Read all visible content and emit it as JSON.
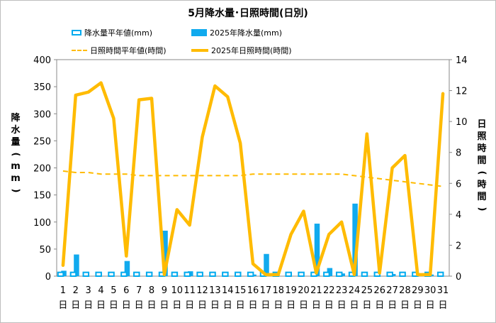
{
  "chart_data": {
    "type": "bar+line",
    "title": "5月降水量･日照時間(日別)",
    "categories": [
      "1",
      "2",
      "3",
      "4",
      "5",
      "6",
      "7",
      "8",
      "9",
      "10",
      "11",
      "12",
      "13",
      "14",
      "15",
      "16",
      "17",
      "18",
      "19",
      "20",
      "21",
      "22",
      "23",
      "24",
      "25",
      "26",
      "27",
      "28",
      "29",
      "30",
      "31"
    ],
    "day_suffix": "日",
    "y_left": {
      "label": "降水量(mm)",
      "ylim": [
        0,
        400
      ],
      "ticks": [
        "0",
        "50",
        "100",
        "150",
        "200",
        "250",
        "300",
        "350",
        "400"
      ]
    },
    "y_right": {
      "label": "日照時間(時間)",
      "ylim": [
        0,
        14
      ],
      "ticks": [
        "0",
        "2",
        "4",
        "6",
        "8",
        "10",
        "12",
        "14"
      ]
    },
    "legend": {
      "precip_avg": "降水量平年値(mm)",
      "precip_2025": "2025年降水量(mm)",
      "sun_avg": "日照時間平年値(時間)",
      "sun_2025": "2025年日照時間(時間)"
    },
    "series": [
      {
        "name": "降水量平年値(mm)",
        "axis": "left",
        "style": "bar-outline",
        "color": "#00aaee",
        "values": [
          7,
          7,
          7,
          7,
          7,
          7,
          7,
          7,
          7,
          7,
          7,
          7,
          7,
          7,
          7,
          7,
          7,
          7,
          7,
          7,
          7,
          7,
          7,
          7,
          7,
          7,
          7,
          7,
          7,
          7,
          7
        ]
      },
      {
        "name": "2025年降水量(mm)",
        "axis": "left",
        "style": "bar",
        "color": "#11aaee",
        "values": [
          10,
          40,
          0,
          0,
          0,
          28,
          0,
          0,
          84,
          0,
          9,
          0,
          0,
          0,
          0,
          3,
          41,
          0,
          0,
          0,
          97,
          15,
          5,
          134,
          0,
          0,
          4,
          0,
          0,
          3,
          0
        ]
      },
      {
        "name": "日照時間平年値(時間)",
        "axis": "right",
        "style": "dashed-line",
        "color": "#ffbb00",
        "values": [
          6.8,
          6.7,
          6.7,
          6.6,
          6.6,
          6.6,
          6.5,
          6.5,
          6.5,
          6.5,
          6.5,
          6.5,
          6.5,
          6.5,
          6.5,
          6.6,
          6.6,
          6.6,
          6.6,
          6.6,
          6.6,
          6.6,
          6.6,
          6.5,
          6.4,
          6.3,
          6.2,
          6.1,
          6.0,
          5.9,
          5.8
        ]
      },
      {
        "name": "2025年日照時間(時間)",
        "axis": "right",
        "style": "line",
        "color": "#ffbb00",
        "values": [
          0.7,
          11.7,
          11.9,
          12.5,
          10.2,
          1.3,
          11.4,
          11.5,
          0.1,
          4.3,
          3.3,
          9.0,
          12.3,
          11.6,
          8.6,
          0.8,
          0.1,
          0.1,
          2.7,
          4.2,
          0.2,
          2.7,
          3.5,
          0.1,
          9.2,
          0.2,
          7.0,
          7.8,
          0.1,
          0.1,
          11.8
        ]
      }
    ],
    "grid": false
  }
}
